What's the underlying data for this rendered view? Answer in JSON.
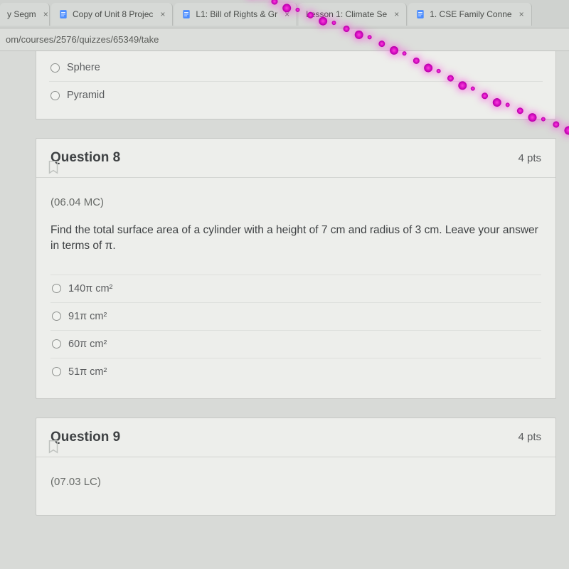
{
  "tabs": [
    {
      "label": "y Segm",
      "favicon": ""
    },
    {
      "label": "Copy of Unit 8 Projec",
      "favicon": "doc"
    },
    {
      "label": "L1: Bill of Rights & Gr",
      "favicon": "doc"
    },
    {
      "label": "Lesson 1: Climate Se",
      "favicon": ""
    },
    {
      "label": "1. CSE Family Conne",
      "favicon": "doc"
    }
  ],
  "url_path": "om/courses/2576/quizzes/65349/take",
  "prev_question_options": [
    {
      "label": "Sphere"
    },
    {
      "label": "Pyramid"
    }
  ],
  "q8": {
    "title": "Question 8",
    "pts": "4 pts",
    "code": "(06.04 MC)",
    "prompt": "Find the total surface area of a cylinder with a height of 7 cm and radius of 3 cm. Leave your answer in terms of π.",
    "options": [
      {
        "label": "140π cm²"
      },
      {
        "label": "91π cm²"
      },
      {
        "label": "60π cm²"
      },
      {
        "label": "51π cm²"
      }
    ]
  },
  "q9": {
    "title": "Question 9",
    "pts": "4 pts",
    "code": "(07.03 LC)"
  },
  "colors": {
    "page_bg": "#d8dad7",
    "card_bg": "#edeeeb",
    "border": "#c6c8c5",
    "text_primary": "#3f4244",
    "text_muted": "#686b68",
    "led_pink": "#ff3de0"
  },
  "close_glyph": "×"
}
